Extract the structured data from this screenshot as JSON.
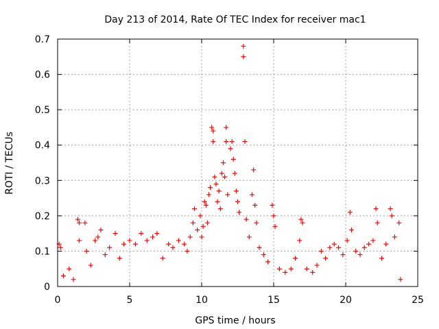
{
  "colors": {
    "marker": "#ff0000",
    "grid": "#a0a0a0",
    "axis": "#000000",
    "background": "#ffffff"
  },
  "chart_data": {
    "type": "scatter",
    "title": "Day 213 of 2014, Rate Of TEC Index for receiver mac1",
    "xlabel": "GPS time / hours",
    "ylabel": "ROTI / TECUs",
    "xlim": [
      0,
      25
    ],
    "ylim": [
      0,
      0.7
    ],
    "xticks": [
      0,
      5,
      10,
      15,
      20,
      25
    ],
    "yticks": [
      0,
      0.1,
      0.2,
      0.3,
      0.4,
      0.5,
      0.6,
      0.7
    ],
    "xtick_labels": [
      "0",
      "5",
      "10",
      "15",
      "20",
      "25"
    ],
    "ytick_labels": [
      "0",
      "0.1",
      "0.2",
      "0.3",
      "0.4",
      "0.5",
      "0.6",
      "0.7"
    ],
    "grid": true,
    "marker": "+",
    "series": [
      {
        "name": "ROTI",
        "points": [
          [
            0.1,
            0.12
          ],
          [
            0.2,
            0.11
          ],
          [
            0.4,
            0.03
          ],
          [
            0.8,
            0.05
          ],
          [
            1.1,
            0.02
          ],
          [
            1.4,
            0.19
          ],
          [
            1.5,
            0.18
          ],
          [
            1.5,
            0.13
          ],
          [
            1.9,
            0.18
          ],
          [
            2.0,
            0.1
          ],
          [
            2.3,
            0.06
          ],
          [
            2.6,
            0.13
          ],
          [
            2.8,
            0.14
          ],
          [
            3.0,
            0.16
          ],
          [
            3.3,
            0.09
          ],
          [
            3.6,
            0.11
          ],
          [
            4.0,
            0.15
          ],
          [
            4.3,
            0.08
          ],
          [
            4.6,
            0.12
          ],
          [
            5.0,
            0.13
          ],
          [
            5.4,
            0.12
          ],
          [
            5.8,
            0.15
          ],
          [
            6.2,
            0.13
          ],
          [
            6.6,
            0.14
          ],
          [
            6.9,
            0.15
          ],
          [
            7.3,
            0.08
          ],
          [
            7.7,
            0.12
          ],
          [
            8.0,
            0.11
          ],
          [
            8.4,
            0.13
          ],
          [
            8.8,
            0.12
          ],
          [
            9.0,
            0.1
          ],
          [
            9.2,
            0.14
          ],
          [
            9.4,
            0.18
          ],
          [
            9.5,
            0.22
          ],
          [
            9.7,
            0.16
          ],
          [
            9.9,
            0.2
          ],
          [
            10.0,
            0.14
          ],
          [
            10.1,
            0.17
          ],
          [
            10.2,
            0.24
          ],
          [
            10.3,
            0.23
          ],
          [
            10.4,
            0.18
          ],
          [
            10.5,
            0.26
          ],
          [
            10.6,
            0.28
          ],
          [
            10.7,
            0.45
          ],
          [
            10.8,
            0.44
          ],
          [
            10.8,
            0.41
          ],
          [
            10.9,
            0.31
          ],
          [
            11.0,
            0.29
          ],
          [
            11.1,
            0.24
          ],
          [
            11.2,
            0.27
          ],
          [
            11.3,
            0.22
          ],
          [
            11.4,
            0.32
          ],
          [
            11.5,
            0.35
          ],
          [
            11.6,
            0.31
          ],
          [
            11.7,
            0.45
          ],
          [
            11.7,
            0.41
          ],
          [
            11.8,
            0.26
          ],
          [
            12.0,
            0.39
          ],
          [
            12.1,
            0.41
          ],
          [
            12.2,
            0.36
          ],
          [
            12.3,
            0.32
          ],
          [
            12.4,
            0.27
          ],
          [
            12.5,
            0.24
          ],
          [
            12.6,
            0.21
          ],
          [
            12.9,
            0.68
          ],
          [
            12.9,
            0.65
          ],
          [
            13.0,
            0.41
          ],
          [
            13.1,
            0.19
          ],
          [
            13.3,
            0.14
          ],
          [
            13.5,
            0.26
          ],
          [
            13.6,
            0.33
          ],
          [
            13.7,
            0.23
          ],
          [
            13.8,
            0.18
          ],
          [
            14.0,
            0.11
          ],
          [
            14.3,
            0.09
          ],
          [
            14.6,
            0.07
          ],
          [
            14.9,
            0.23
          ],
          [
            15.0,
            0.2
          ],
          [
            15.1,
            0.17
          ],
          [
            15.4,
            0.05
          ],
          [
            15.8,
            0.04
          ],
          [
            16.2,
            0.05
          ],
          [
            16.5,
            0.08
          ],
          [
            16.8,
            0.13
          ],
          [
            16.9,
            0.19
          ],
          [
            17.0,
            0.18
          ],
          [
            17.3,
            0.05
          ],
          [
            17.7,
            0.04
          ],
          [
            18.0,
            0.06
          ],
          [
            18.3,
            0.1
          ],
          [
            18.6,
            0.08
          ],
          [
            18.9,
            0.11
          ],
          [
            19.2,
            0.12
          ],
          [
            19.5,
            0.11
          ],
          [
            19.8,
            0.09
          ],
          [
            20.1,
            0.13
          ],
          [
            20.3,
            0.21
          ],
          [
            20.4,
            0.16
          ],
          [
            20.7,
            0.1
          ],
          [
            21.0,
            0.09
          ],
          [
            21.3,
            0.11
          ],
          [
            21.6,
            0.12
          ],
          [
            21.9,
            0.13
          ],
          [
            22.1,
            0.22
          ],
          [
            22.2,
            0.18
          ],
          [
            22.5,
            0.08
          ],
          [
            22.8,
            0.12
          ],
          [
            23.1,
            0.22
          ],
          [
            23.2,
            0.2
          ],
          [
            23.4,
            0.14
          ],
          [
            23.7,
            0.18
          ],
          [
            23.8,
            0.02
          ]
        ]
      }
    ]
  }
}
